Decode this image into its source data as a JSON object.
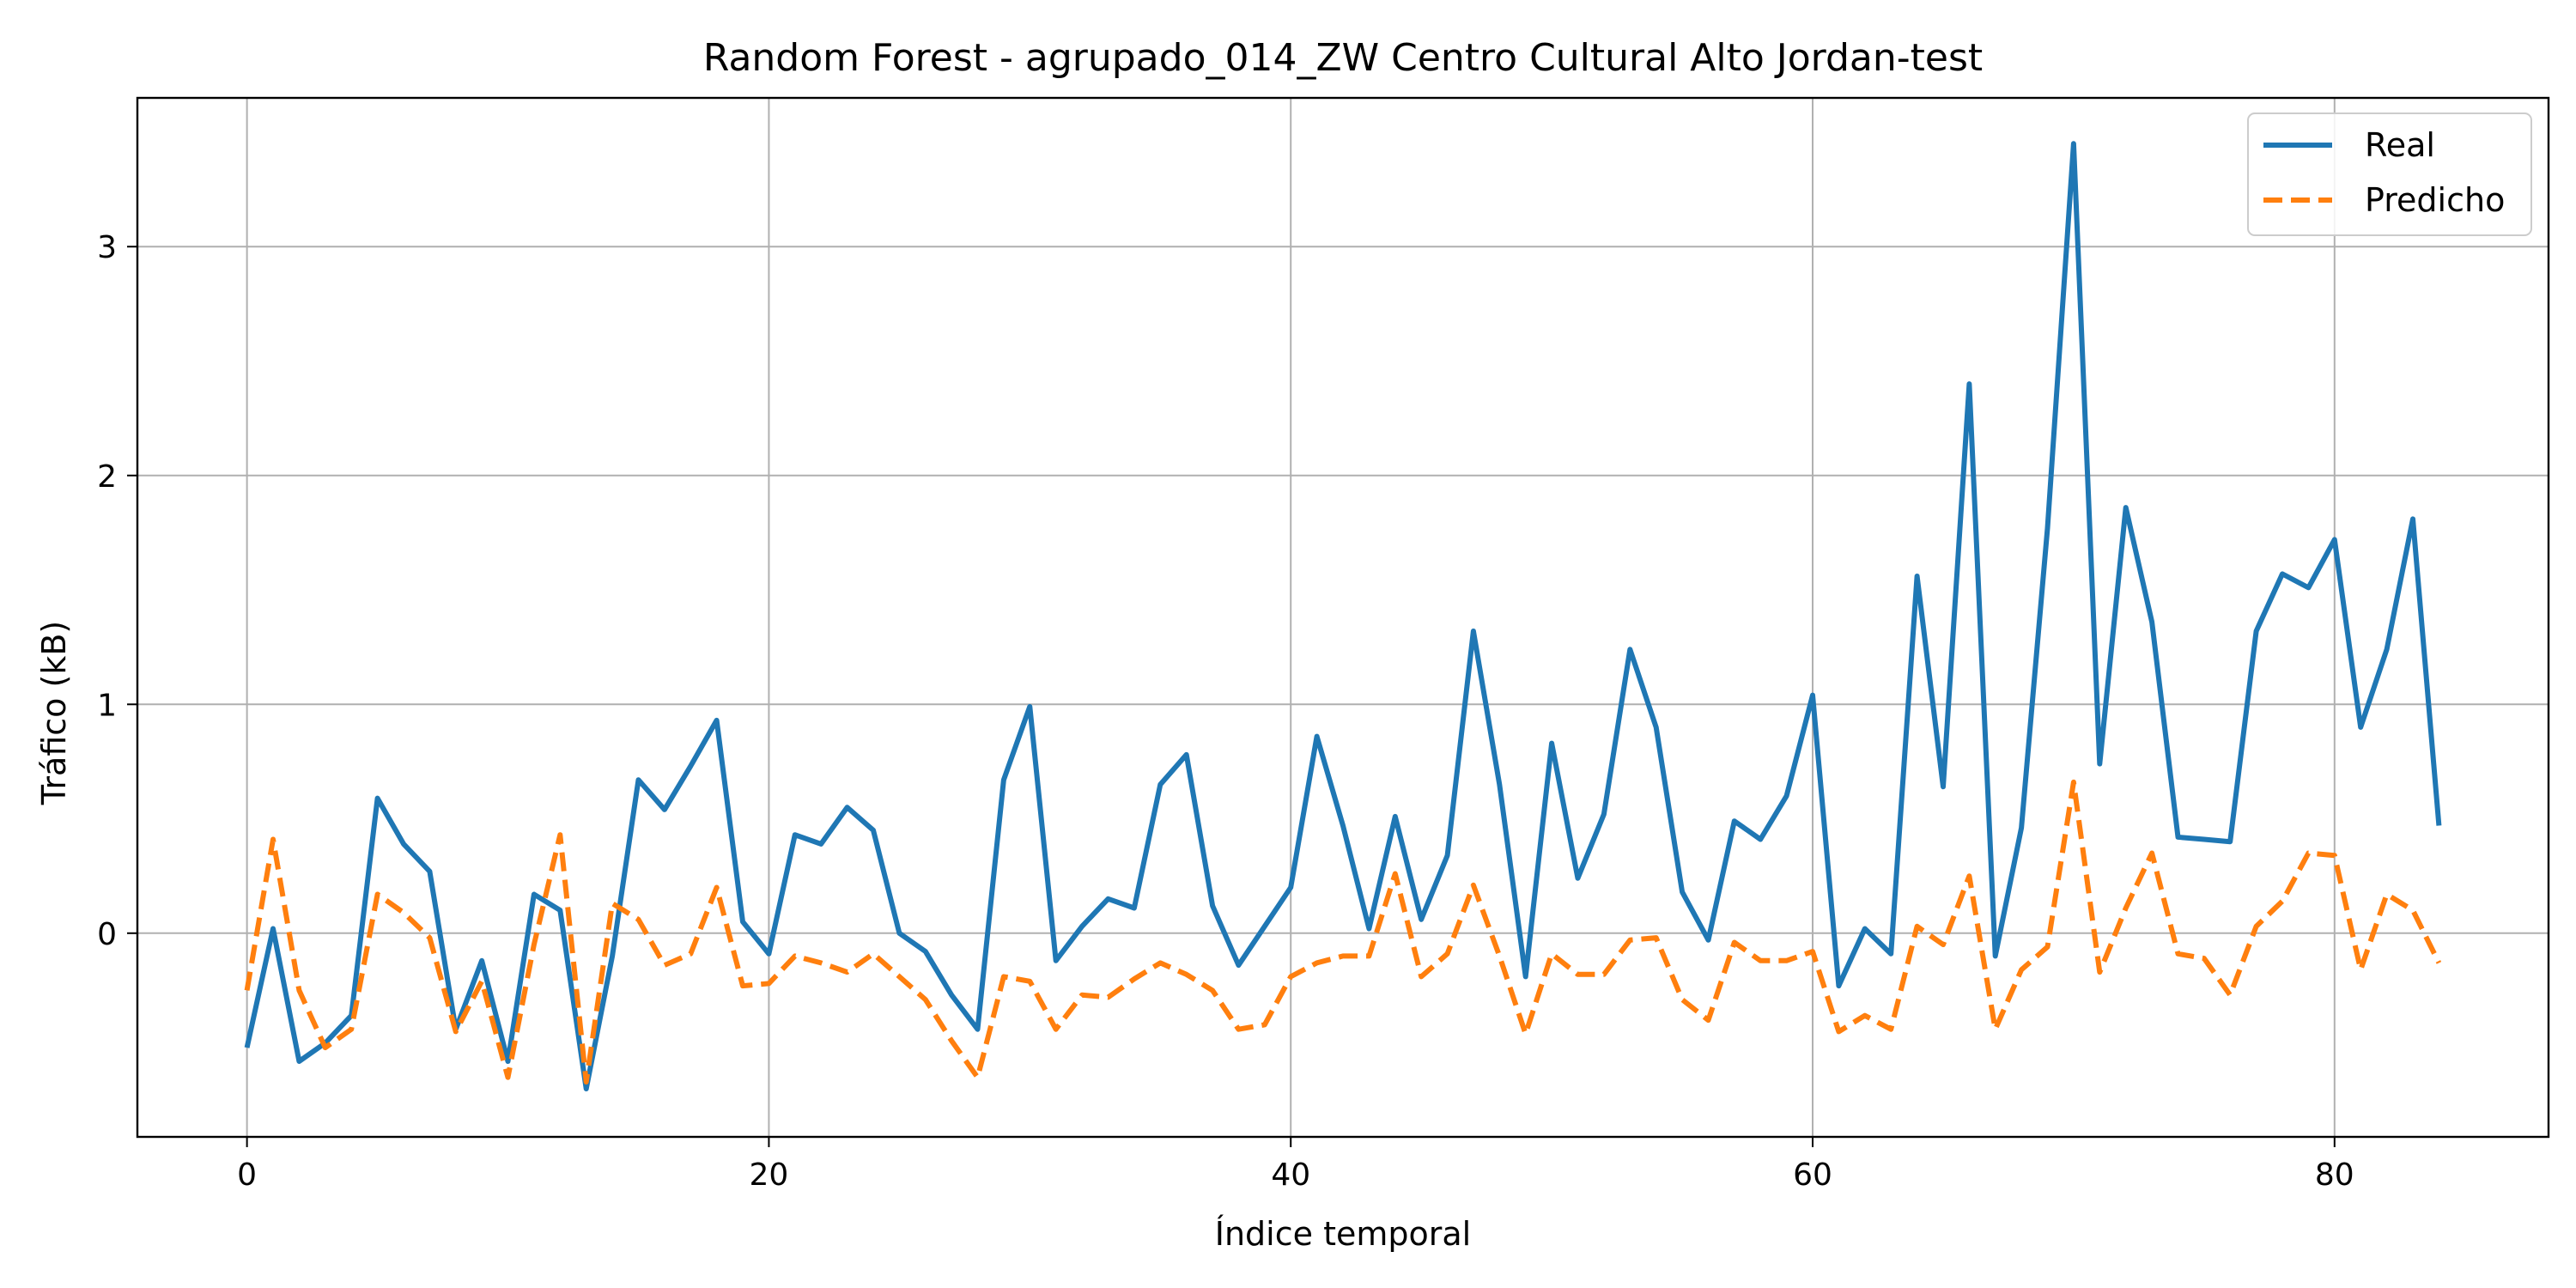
{
  "chart_data": {
    "type": "line",
    "title": "Random Forest - agrupado_014_ZW Centro Cultural Alto Jordan-test",
    "xlabel": "Índice temporal",
    "ylabel": "Tráfico (kB)",
    "xlim": [
      -4.2,
      88.2
    ],
    "ylim": [
      -0.89,
      3.65
    ],
    "xticks": [
      0,
      20,
      40,
      60,
      80
    ],
    "yticks": [
      0,
      1,
      2,
      3
    ],
    "grid": true,
    "legend": "top-right",
    "series": [
      {
        "name": "Real",
        "color": "#1f77b4",
        "style": "solid",
        "values": [
          -0.5,
          0.02,
          -0.56,
          -0.48,
          -0.36,
          0.59,
          0.39,
          0.27,
          -0.42,
          -0.12,
          -0.56,
          0.17,
          0.1,
          -0.68,
          -0.1,
          0.67,
          0.54,
          0.73,
          0.93,
          0.05,
          -0.09,
          0.43,
          0.39,
          0.55,
          0.45,
          0.0,
          -0.08,
          -0.27,
          -0.42,
          0.67,
          0.99,
          -0.12,
          0.03,
          0.15,
          0.11,
          0.65,
          0.78,
          0.12,
          -0.14,
          0.03,
          0.2,
          0.86,
          0.47,
          0.02,
          0.51,
          0.06,
          0.34,
          1.32,
          0.65,
          -0.19,
          0.83,
          0.24,
          0.52,
          1.24,
          0.9,
          0.18,
          -0.03,
          0.49,
          0.41,
          0.6,
          1.04,
          -0.23,
          0.02,
          -0.09,
          1.56,
          0.64,
          2.4,
          -0.1,
          0.46,
          1.77,
          3.45,
          0.74,
          1.86,
          1.36,
          0.42,
          0.41,
          0.4,
          1.32,
          1.57,
          1.51,
          1.72,
          0.9,
          1.24,
          1.81,
          0.47
        ]
      },
      {
        "name": "Predicho",
        "color": "#ff7f0e",
        "style": "dashed",
        "values": [
          -0.25,
          0.41,
          -0.25,
          -0.5,
          -0.42,
          0.17,
          0.09,
          -0.02,
          -0.43,
          -0.21,
          -0.63,
          -0.05,
          0.43,
          -0.65,
          0.13,
          0.06,
          -0.14,
          -0.09,
          0.2,
          -0.23,
          -0.22,
          -0.1,
          -0.13,
          -0.17,
          -0.09,
          -0.19,
          -0.29,
          -0.47,
          -0.63,
          -0.19,
          -0.21,
          -0.42,
          -0.27,
          -0.28,
          -0.2,
          -0.13,
          -0.18,
          -0.25,
          -0.42,
          -0.4,
          -0.19,
          -0.13,
          -0.1,
          -0.1,
          0.26,
          -0.19,
          -0.09,
          0.21,
          -0.1,
          -0.44,
          -0.09,
          -0.18,
          -0.18,
          -0.03,
          -0.02,
          -0.29,
          -0.38,
          -0.04,
          -0.12,
          -0.12,
          -0.08,
          -0.43,
          -0.36,
          -0.42,
          0.03,
          -0.05,
          0.25,
          -0.42,
          -0.16,
          -0.06,
          0.66,
          -0.17,
          0.11,
          0.35,
          -0.09,
          -0.11,
          -0.27,
          0.03,
          0.14,
          0.35,
          0.34,
          -0.16,
          0.17,
          0.1,
          -0.13
        ]
      }
    ]
  }
}
